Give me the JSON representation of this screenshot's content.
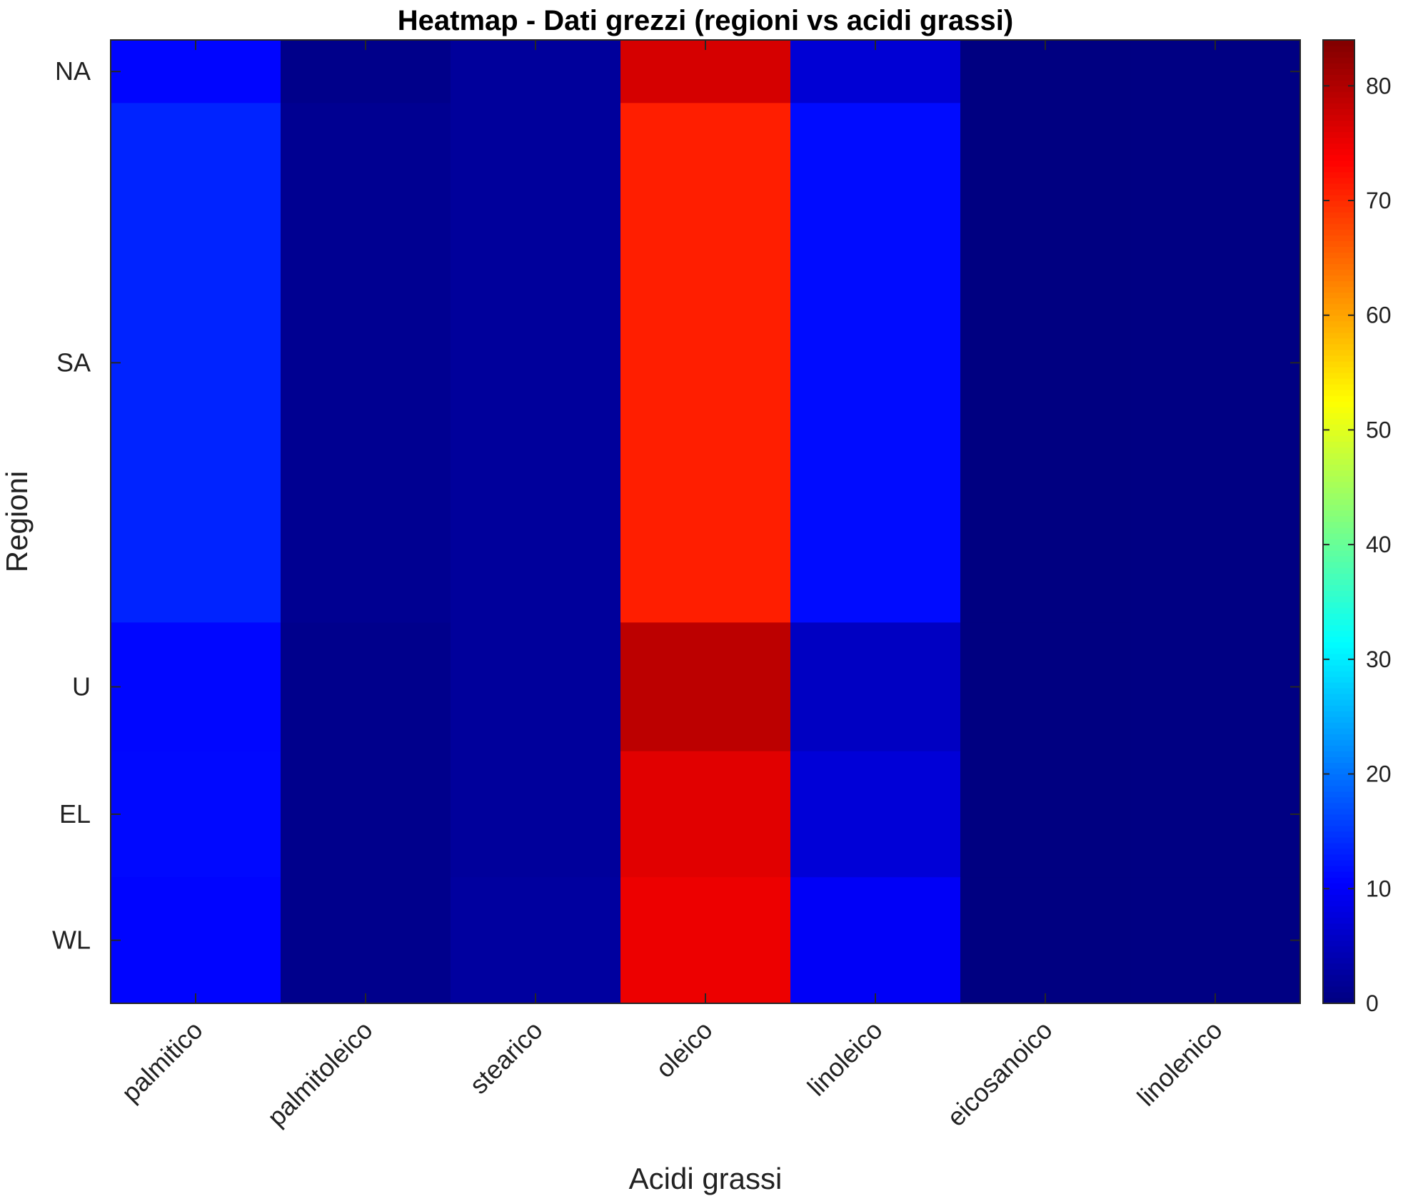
{
  "chart_data": {
    "type": "heatmap",
    "title": "Heatmap - Dati grezzi (regioni vs acidi grassi)",
    "xlabel": "Acidi grassi",
    "ylabel": "Regioni",
    "columns": [
      "palmitico",
      "palmitoleico",
      "stearico",
      "oleico",
      "linoleico",
      "eicosanoico",
      "linolenico"
    ],
    "row_groups": [
      {
        "label": "NA",
        "rows": 25,
        "values": [
          10.9,
          0.9,
          2.3,
          77.0,
          7.0,
          0.1,
          0.3
        ]
      },
      {
        "label": "SA",
        "rows": 206,
        "values": [
          13.4,
          1.4,
          2.3,
          71.0,
          11.4,
          0.1,
          0.3
        ]
      },
      {
        "label": "U",
        "rows": 51,
        "values": [
          11.0,
          1.0,
          2.3,
          79.0,
          5.5,
          0.1,
          0.3
        ]
      },
      {
        "label": "EL",
        "rows": 50,
        "values": [
          11.2,
          1.0,
          2.3,
          76.0,
          7.2,
          0.1,
          0.3
        ]
      },
      {
        "label": "WL",
        "rows": 50,
        "values": [
          10.8,
          1.0,
          2.6,
          75.0,
          9.8,
          0.1,
          0.3
        ]
      }
    ],
    "colorbar": {
      "min": 0,
      "max": 84,
      "ticks": [
        0,
        10,
        20,
        30,
        40,
        50,
        60,
        70,
        80
      ],
      "colormap": "jet"
    },
    "grid": false,
    "legend": "colorbar-right"
  }
}
